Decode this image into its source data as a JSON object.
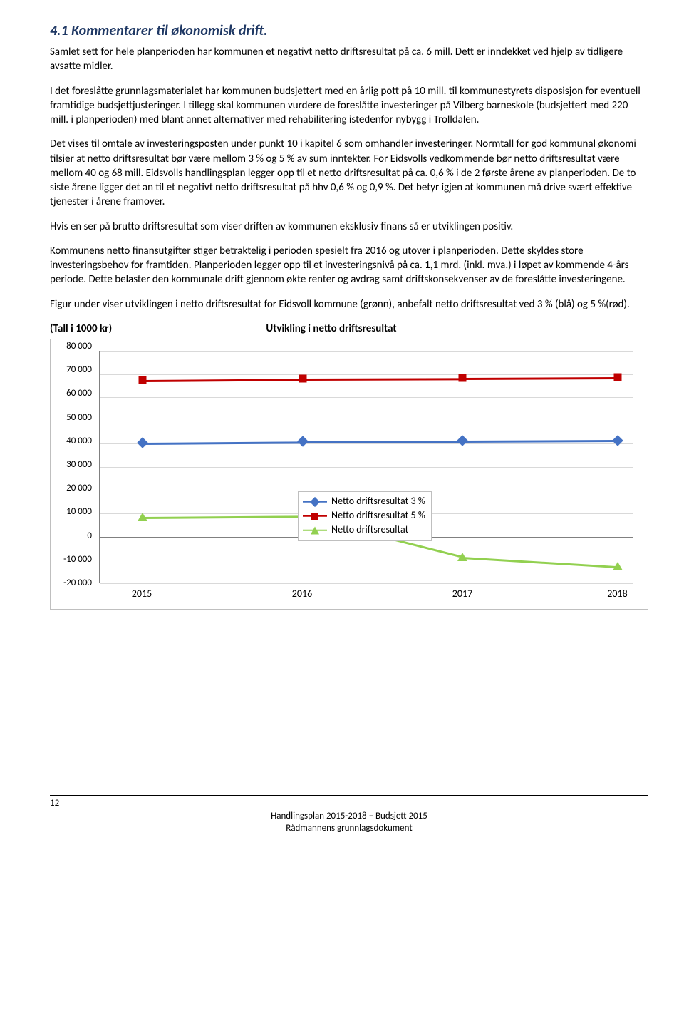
{
  "heading": "4.1  Kommentarer til økonomisk drift.",
  "paragraphs": {
    "p1": "Samlet sett for hele planperioden har kommunen et negativt netto driftsresultat på ca. 6 mill. Dett er inndekket ved hjelp av tidligere avsatte midler.",
    "p2": "I det foreslåtte grunnlagsmaterialet har kommunen budsjettert med en årlig pott på 10 mill. til kommunestyrets disposisjon for eventuell framtidige budsjettjusteringer. I tillegg skal kommunen vurdere de foreslåtte investeringer på Vilberg barneskole (budsjettert med 220 mill. i planperioden) med blant annet alternativer med rehabilitering istedenfor nybygg i Trolldalen.",
    "p3": "Det vises til omtale av investeringsposten under punkt 10 i kapitel 6 som omhandler investeringer. Normtall for god kommunal økonomi tilsier at netto driftsresultat bør være mellom 3 % og 5 % av sum inntekter. For Eidsvolls vedkommende bør netto driftsresultat være mellom 40 og 68 mill. Eidsvolls handlingsplan legger opp til et netto driftsresultat på ca. 0,6 % i de 2 første årene av planperioden. De to siste årene ligger det an til et negativt netto driftsresultat på hhv 0,6 % og 0,9 %. Det betyr igjen at kommunen må drive svært effektive tjenester i årene framover.",
    "p4": "Hvis en ser på brutto driftsresultat som viser driften av kommunen eksklusiv finans så er utviklingen positiv.",
    "p5": "Kommunens netto finansutgifter stiger betraktelig i perioden spesielt fra 2016 og utover i planperioden. Dette skyldes store investeringsbehov for framtiden. Planperioden legger opp til et investeringsnivå på ca. 1,1 mrd. (inkl. mva.) i løpet av kommende 4-års periode.  Dette belaster den kommunale drift gjennom økte renter og avdrag samt driftskonsekvenser av de foreslåtte investeringene.",
    "p6": "Figur under viser utviklingen i netto driftsresultat for Eidsvoll kommune (grønn), anbefalt netto driftsresultat ved 3 % (blå) og 5 %(rød).",
    "tall_label": "(Tall i 1000 kr)",
    "chart_title": "Utvikling i netto driftsresultat"
  },
  "chart": {
    "type": "line",
    "categories": [
      "2015",
      "2016",
      "2017",
      "2018"
    ],
    "y_ticks": [
      "80 000",
      "70 000",
      "60 000",
      "50 000",
      "40 000",
      "30 000",
      "20 000",
      "10 000",
      "0",
      "-10 000",
      "-20 000"
    ],
    "ymin": -20000,
    "ymax": 80000,
    "series": [
      {
        "name": "Netto driftsresultat 3 %",
        "color": "#4472c4",
        "marker": "diamond",
        "values": [
          40500,
          41000,
          41200,
          41500
        ]
      },
      {
        "name": "Netto driftsresultat 5 %",
        "color": "#c00000",
        "marker": "square",
        "values": [
          67500,
          68000,
          68200,
          68500
        ]
      },
      {
        "name": "Netto driftsresultat",
        "color": "#92d050",
        "marker": "triangle",
        "values": [
          8500,
          9000,
          -8500,
          -12500
        ]
      }
    ],
    "grid_color": "#d9d9d9",
    "axis_color": "#808080",
    "background_color": "#ffffff",
    "legend_border": "#bfbfbf"
  },
  "footer": {
    "page": "12",
    "line1": "Handlingsplan 2015-2018 – Budsjett 2015",
    "line2": "Rådmannens grunnlagsdokument"
  }
}
